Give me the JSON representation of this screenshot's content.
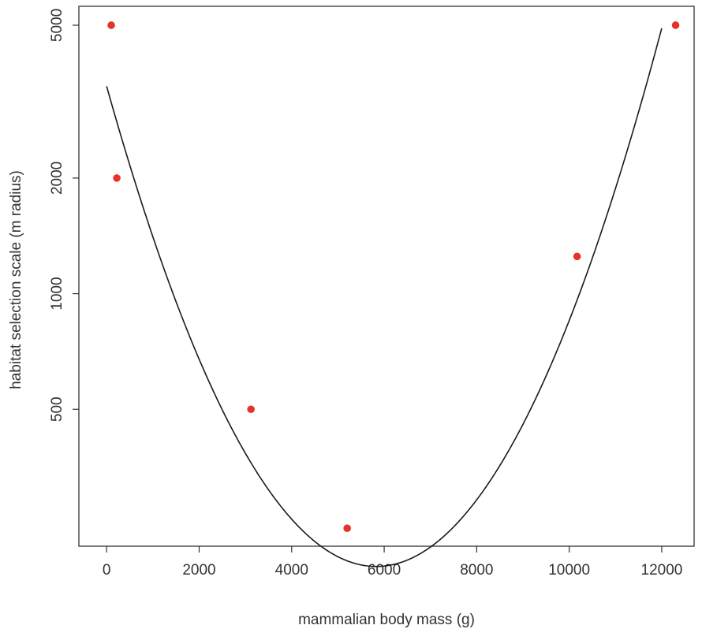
{
  "chart_data": {
    "type": "scatter",
    "title": "",
    "xlabel": "mammalian body mass (g)",
    "ylabel": "habitat selection scale (m radius)",
    "xlim": [
      -600,
      12700
    ],
    "ylim": [
      220,
      5600
    ],
    "y_scale": "log",
    "x_ticks": [
      0,
      2000,
      4000,
      6000,
      8000,
      10000,
      12000
    ],
    "x_tick_labels": [
      "0",
      "2000",
      "4000",
      "6000",
      "8000",
      "10000",
      "12000"
    ],
    "y_ticks": [
      500,
      1000,
      2000,
      5000
    ],
    "y_tick_labels": [
      "500",
      "1000",
      "2000",
      "5000"
    ],
    "grid": false,
    "legend": "none",
    "points": [
      {
        "x": 100,
        "y": 5000
      },
      {
        "x": 220,
        "y": 2000
      },
      {
        "x": 3120,
        "y": 500
      },
      {
        "x": 5200,
        "y": 245
      },
      {
        "x": 10170,
        "y": 1250
      },
      {
        "x": 12300,
        "y": 5000
      }
    ],
    "fit_curve": {
      "form": "log10(y) = a + b*x + c*x^2",
      "a": 3.54,
      "b": -0.000429,
      "c": 3.68e-08,
      "x_range": [
        0,
        12000
      ]
    },
    "colors": {
      "points": "#e8312a",
      "curve": "#1a1a1a",
      "axis": "#333333"
    }
  }
}
